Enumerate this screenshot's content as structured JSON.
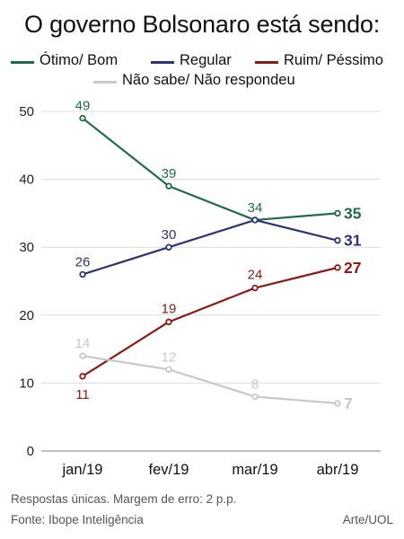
{
  "header": {
    "title": "O governo Bolsonaro está sendo:"
  },
  "legend": [
    {
      "label": "Ótimo/ Bom",
      "color": "#1f6b45"
    },
    {
      "label": "Regular",
      "color": "#2e3278"
    },
    {
      "label": "Ruim/ Péssimo",
      "color": "#8b1a14"
    },
    {
      "label": "Não sabe/ Não respondeu",
      "color": "#c8c8c8"
    }
  ],
  "chart_data": {
    "type": "line",
    "title": "O governo Bolsonaro está sendo:",
    "categories": [
      "jan/19",
      "fev/19",
      "mar/19",
      "abr/19"
    ],
    "ylim": [
      0,
      50
    ],
    "yticks": [
      0,
      10,
      20,
      30,
      40,
      50
    ],
    "grid": true,
    "legend_position": "top",
    "series": [
      {
        "name": "Ótimo/ Bom",
        "color": "#1f6b45",
        "values": [
          49,
          39,
          34,
          35
        ]
      },
      {
        "name": "Regular",
        "color": "#2e3278",
        "values": [
          26,
          30,
          34,
          31
        ]
      },
      {
        "name": "Ruim/ Péssimo",
        "color": "#8b1a14",
        "values": [
          11,
          19,
          24,
          27
        ]
      },
      {
        "name": "Não sabe/ Não respondeu",
        "color": "#c8c8c8",
        "values": [
          14,
          12,
          8,
          7
        ]
      }
    ]
  },
  "footer": {
    "note": "Respostas únicas. Margem de erro: 2 p.p.",
    "source": "Fonte: Ibope Inteligência",
    "credit": "Arte/UOL"
  }
}
